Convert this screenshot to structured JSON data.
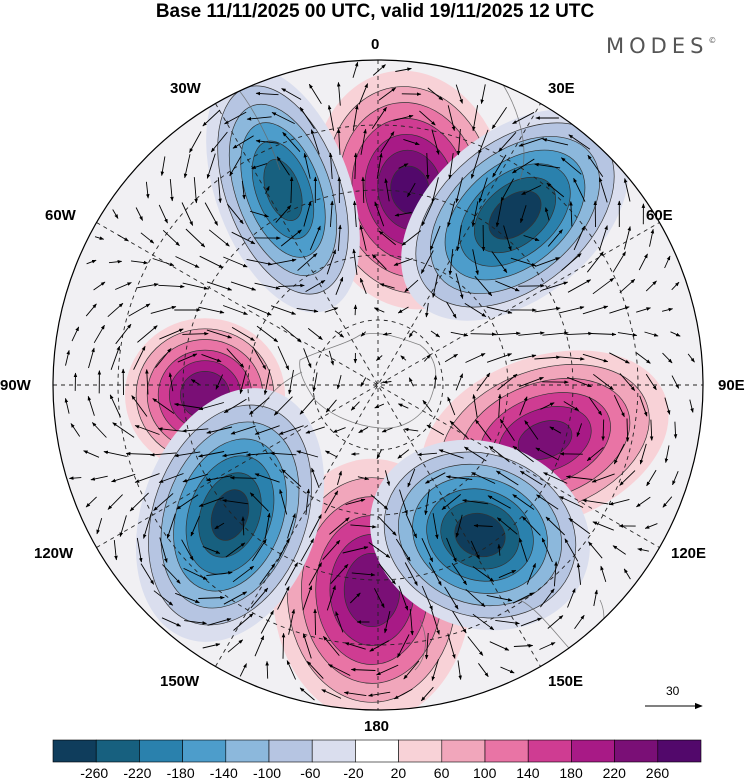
{
  "title": "Base 11/11/2025 00 UTC, valid 19/11/2025 12 UTC",
  "brand": "MODES",
  "brand_mark": "©",
  "meridian_labels": {
    "m0": "0",
    "m30e": "30E",
    "m30w": "30W",
    "m60e": "60E",
    "m60w": "60W",
    "m90e": "90E",
    "m90w": "90W",
    "m120e": "120E",
    "m120w": "120W",
    "m150e": "150E",
    "m150w": "150W",
    "m180": "180"
  },
  "wind_reference": "30",
  "colorbar": {
    "ticks": [
      "-260",
      "-220",
      "-180",
      "-140",
      "-100",
      "-60",
      "-20",
      "20",
      "60",
      "100",
      "140",
      "180",
      "220",
      "260"
    ],
    "colors": [
      "#0f3d5c",
      "#17607f",
      "#2a81ad",
      "#4d9dcb",
      "#8cb8dc",
      "#b6c5e2",
      "#dadeee",
      "#ffffff",
      "#f8d2d7",
      "#f1a6bb",
      "#e974a5",
      "#cf3c92",
      "#a81a86",
      "#7a0f76",
      "#52086b"
    ]
  },
  "features": {
    "highs": [
      {
        "name": "high-0",
        "intensity": 240
      },
      {
        "name": "high-90w",
        "intensity": 230
      },
      {
        "name": "high-180",
        "intensity": 220
      },
      {
        "name": "high-100e",
        "intensity": 200
      }
    ],
    "lows": [
      {
        "name": "low-30w",
        "intensity": -210
      },
      {
        "name": "low-45e",
        "intensity": -250
      },
      {
        "name": "low-120w",
        "intensity": -240
      },
      {
        "name": "low-140e",
        "intensity": -250
      }
    ]
  }
}
